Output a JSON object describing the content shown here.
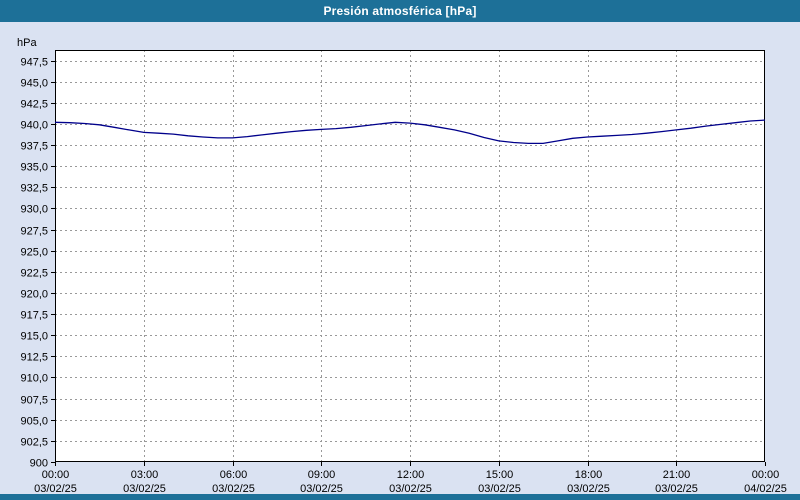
{
  "window": {
    "title": "Presión atmosférica [hPa]"
  },
  "colors": {
    "header_bg": "#1d7098",
    "page_bg": "#dae2f2",
    "plot_bg": "#ffffff",
    "grid": "#999999",
    "line": "#00008b",
    "axis_border": "#000000",
    "title_text": "#ffffff"
  },
  "chart_data": {
    "type": "line",
    "title": "Presión atmosférica [hPa]",
    "ylabel": "hPa",
    "xlabel": "",
    "xlim": [
      0,
      24
    ],
    "ylim": [
      900,
      948.75
    ],
    "grid": true,
    "legend_position": "none",
    "y_ticks": [
      {
        "v": 947.5,
        "label": "947,5"
      },
      {
        "v": 945.0,
        "label": "945,0"
      },
      {
        "v": 942.5,
        "label": "942,5"
      },
      {
        "v": 940.0,
        "label": "940,0"
      },
      {
        "v": 937.5,
        "label": "937,5"
      },
      {
        "v": 935.0,
        "label": "935,0"
      },
      {
        "v": 932.5,
        "label": "932,5"
      },
      {
        "v": 930.0,
        "label": "930,0"
      },
      {
        "v": 927.5,
        "label": "927,5"
      },
      {
        "v": 925.0,
        "label": "925,0"
      },
      {
        "v": 922.5,
        "label": "922,5"
      },
      {
        "v": 920.0,
        "label": "920,0"
      },
      {
        "v": 917.5,
        "label": "917,5"
      },
      {
        "v": 915.0,
        "label": "915,0"
      },
      {
        "v": 912.5,
        "label": "912,5"
      },
      {
        "v": 910.0,
        "label": "910,0"
      },
      {
        "v": 907.5,
        "label": "907,5"
      },
      {
        "v": 905.0,
        "label": "905,0"
      },
      {
        "v": 902.5,
        "label": "902,5"
      },
      {
        "v": 900.0,
        "label": "900"
      }
    ],
    "x_ticks": [
      {
        "h": 0,
        "label": "00:00",
        "date": "03/02/25"
      },
      {
        "h": 3,
        "label": "03:00",
        "date": "03/02/25"
      },
      {
        "h": 6,
        "label": "06:00",
        "date": "03/02/25"
      },
      {
        "h": 9,
        "label": "09:00",
        "date": "03/02/25"
      },
      {
        "h": 12,
        "label": "12:00",
        "date": "03/02/25"
      },
      {
        "h": 15,
        "label": "15:00",
        "date": "03/02/25"
      },
      {
        "h": 18,
        "label": "18:00",
        "date": "03/02/25"
      },
      {
        "h": 21,
        "label": "21:00",
        "date": "03/02/25"
      },
      {
        "h": 24,
        "label": "00:00",
        "date": "04/02/25"
      }
    ],
    "series": [
      {
        "name": "Presión atmosférica",
        "color": "#00008b",
        "points": [
          [
            0,
            940.2
          ],
          [
            0.5,
            940.15
          ],
          [
            1,
            940.05
          ],
          [
            1.5,
            939.9
          ],
          [
            2,
            939.6
          ],
          [
            2.5,
            939.3
          ],
          [
            3,
            939.0
          ],
          [
            3.5,
            938.9
          ],
          [
            4,
            938.8
          ],
          [
            4.5,
            938.6
          ],
          [
            5,
            938.45
          ],
          [
            5.5,
            938.35
          ],
          [
            6,
            938.35
          ],
          [
            6.5,
            938.5
          ],
          [
            7,
            938.7
          ],
          [
            7.5,
            938.9
          ],
          [
            8,
            939.1
          ],
          [
            8.5,
            939.25
          ],
          [
            9,
            939.35
          ],
          [
            9.5,
            939.45
          ],
          [
            10,
            939.6
          ],
          [
            10.5,
            939.8
          ],
          [
            11,
            940.0
          ],
          [
            11.5,
            940.2
          ],
          [
            12,
            940.1
          ],
          [
            12.5,
            939.9
          ],
          [
            13,
            939.6
          ],
          [
            13.5,
            939.3
          ],
          [
            14,
            938.9
          ],
          [
            14.5,
            938.4
          ],
          [
            15,
            938.0
          ],
          [
            15.5,
            937.8
          ],
          [
            16,
            937.7
          ],
          [
            16.5,
            937.7
          ],
          [
            17,
            938.0
          ],
          [
            17.5,
            938.3
          ],
          [
            18,
            938.45
          ],
          [
            18.5,
            938.55
          ],
          [
            19,
            938.65
          ],
          [
            19.5,
            938.75
          ],
          [
            20,
            938.9
          ],
          [
            20.5,
            939.1
          ],
          [
            21,
            939.3
          ],
          [
            21.5,
            939.5
          ],
          [
            22,
            939.75
          ],
          [
            22.5,
            939.95
          ],
          [
            23,
            940.15
          ],
          [
            23.5,
            940.35
          ],
          [
            24,
            940.45
          ]
        ]
      }
    ]
  }
}
